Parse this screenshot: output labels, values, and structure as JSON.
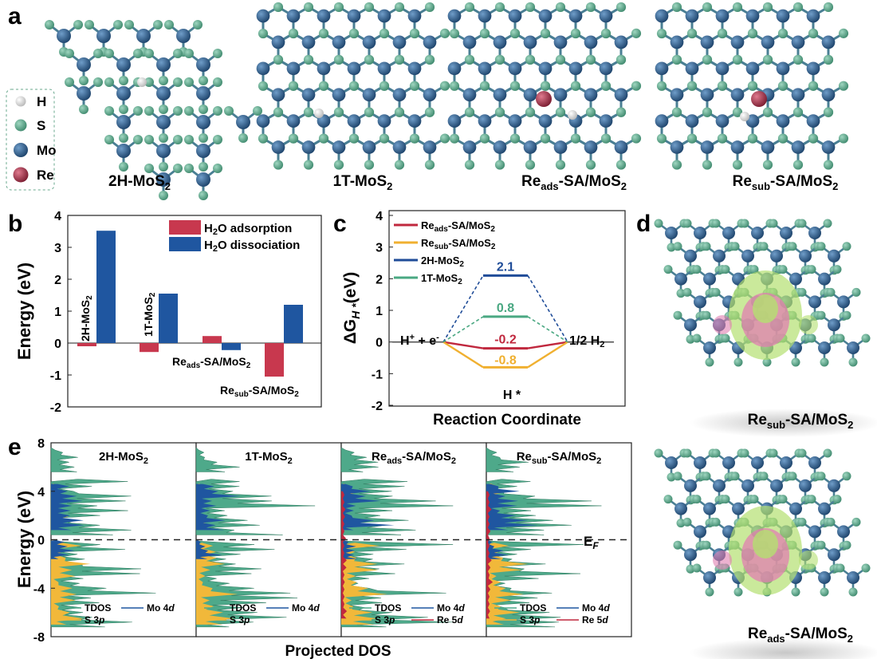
{
  "panel_letters": [
    "a",
    "b",
    "c",
    "d",
    "e"
  ],
  "panel_a": {
    "legend": [
      "H",
      "S",
      "Mo",
      "Re"
    ],
    "structures": [
      {
        "main": "2H-MoS",
        "sub": "",
        "tail": "",
        "subscript": "2"
      },
      {
        "main": "1T-MoS",
        "sub": "",
        "tail": "",
        "subscript": "2"
      },
      {
        "main": "Re",
        "sub": "ads",
        "tail": "-SA/MoS",
        "subscript": "2"
      },
      {
        "main": "Re",
        "sub": "sub",
        "tail": "-SA/MoS",
        "subscript": "2"
      }
    ],
    "colors": {
      "H": "#e8e8e8",
      "S": "#5aa88a",
      "Mo": "#2e5f8f",
      "Re": "#b2334c"
    }
  },
  "panel_d": {
    "labels": [
      {
        "main": "Re",
        "sub": "sub",
        "tail": "-SA/MoS",
        "subscript": "2"
      },
      {
        "main": "Re",
        "sub": "ads",
        "tail": "-SA/MoS",
        "subscript": "2"
      }
    ]
  },
  "chart_data": [
    {
      "id": "b",
      "type": "bar",
      "ylabel": "Energy (eV)",
      "ylim": [
        -2,
        4
      ],
      "yticks": [
        -2,
        -1,
        0,
        1,
        2,
        3,
        4
      ],
      "categories": [
        "2H-MoS2",
        "1T-MoS2",
        "Reads-SA/MoS2",
        "Resub-SA/MoS2"
      ],
      "category_labels": [
        {
          "main": "2H-MoS",
          "sub": "2"
        },
        {
          "main": "1T-MoS",
          "sub": "2"
        },
        {
          "main": "Re",
          "sub": "ads",
          "tail": "-SA/MoS",
          "sub2": "2"
        },
        {
          "main": "Re",
          "sub": "sub",
          "tail": "-SA/MoS",
          "sub2": "2"
        }
      ],
      "series": [
        {
          "name": "H2O adsorption",
          "label_main": "H",
          "label_sub": "2",
          "label_tail": "O adsorption",
          "color": "#c8384e",
          "values": [
            -0.1,
            -0.28,
            0.22,
            -1.05
          ]
        },
        {
          "name": "H2O dissociation",
          "label_main": "H",
          "label_sub": "2",
          "label_tail": "O dissociation",
          "color": "#1f56a0",
          "values": [
            3.52,
            1.55,
            -0.22,
            1.2
          ]
        }
      ],
      "legend_position": "top-right"
    },
    {
      "id": "c",
      "type": "line",
      "ylabel_main": "ΔG",
      "ylabel_sub": "H *",
      "ylabel_tail": "(eV)",
      "xlabel": "Reaction Coordinate",
      "ylim": [
        -2,
        4
      ],
      "yticks": [
        -2,
        -1,
        0,
        1,
        2,
        3,
        4
      ],
      "left_label": {
        "main": "H",
        "sup1": "+",
        "mid": " + e",
        "sup2": "-"
      },
      "right_label": {
        "main": "1/2 H",
        "sub": "2"
      },
      "hstar_label": "H *",
      "series": [
        {
          "name": "Reads-SA/MoS2",
          "main": "Re",
          "sub": "ads",
          "tail": "-SA/MoS",
          "sub2": "2",
          "color": "#c0283e",
          "value": -0.2,
          "value_label": "-0.2"
        },
        {
          "name": "Resub-SA/MoS2",
          "main": "Re",
          "sub": "sub",
          "tail": "-SA/MoS",
          "sub2": "2",
          "color": "#f0b030",
          "value": -0.8,
          "value_label": "-0.8"
        },
        {
          "name": "2H-MoS2",
          "main": "2H-MoS",
          "sub": "",
          "tail": "",
          "sub2": "2",
          "color": "#1f4c98",
          "value": 2.1,
          "value_label": "2.1"
        },
        {
          "name": "1T-MoS2",
          "main": "1T-MoS",
          "sub": "",
          "tail": "",
          "sub2": "2",
          "color": "#4aa882",
          "value": 0.8,
          "value_label": "0.8"
        }
      ],
      "legend_position": "top-left"
    },
    {
      "id": "e",
      "type": "area",
      "ylabel": "Energy (eV)",
      "xlabel": "Projected DOS",
      "ylim": [
        -8,
        8
      ],
      "yticks": [
        -8,
        -4,
        0,
        4,
        8
      ],
      "fermi_label_main": "E",
      "fermi_label_sub": "F",
      "colors": {
        "TDOS": "#4ea98a",
        "Mo 4d": "#1f56a0",
        "S 3p": "#f1b83a",
        "Re 5d": "#c0283e"
      },
      "panels": [
        {
          "title_main": "2H-MoS",
          "title_sub": "",
          "title_tail": "",
          "title_sub2": "2",
          "legend": [
            [
              "TDOS",
              ""
            ],
            [
              "Mo 4",
              "d"
            ],
            [
              "S 3",
              "p"
            ]
          ],
          "has_re": false
        },
        {
          "title_main": "1T-MoS",
          "title_sub": "",
          "title_tail": "",
          "title_sub2": "2",
          "legend": [
            [
              "TDOS",
              ""
            ],
            [
              "Mo 4",
              "d"
            ],
            [
              "S 3",
              "p"
            ]
          ],
          "has_re": false
        },
        {
          "title_main": "Re",
          "title_sub": "ads",
          "title_tail": "-SA/MoS",
          "title_sub2": "2",
          "legend": [
            [
              "TDOS",
              ""
            ],
            [
              "Mo 4",
              "d"
            ],
            [
              "S 3",
              "p"
            ],
            [
              "Re 5",
              "d"
            ]
          ],
          "has_re": true
        },
        {
          "title_main": "Re",
          "title_sub": "sub",
          "title_tail": "-SA/MoS",
          "title_sub2": "2",
          "legend": [
            [
              "TDOS",
              ""
            ],
            [
              "Mo 4",
              "d"
            ],
            [
              "S 3",
              "p"
            ],
            [
              "Re 5",
              "d"
            ]
          ],
          "has_re": true
        }
      ]
    }
  ]
}
